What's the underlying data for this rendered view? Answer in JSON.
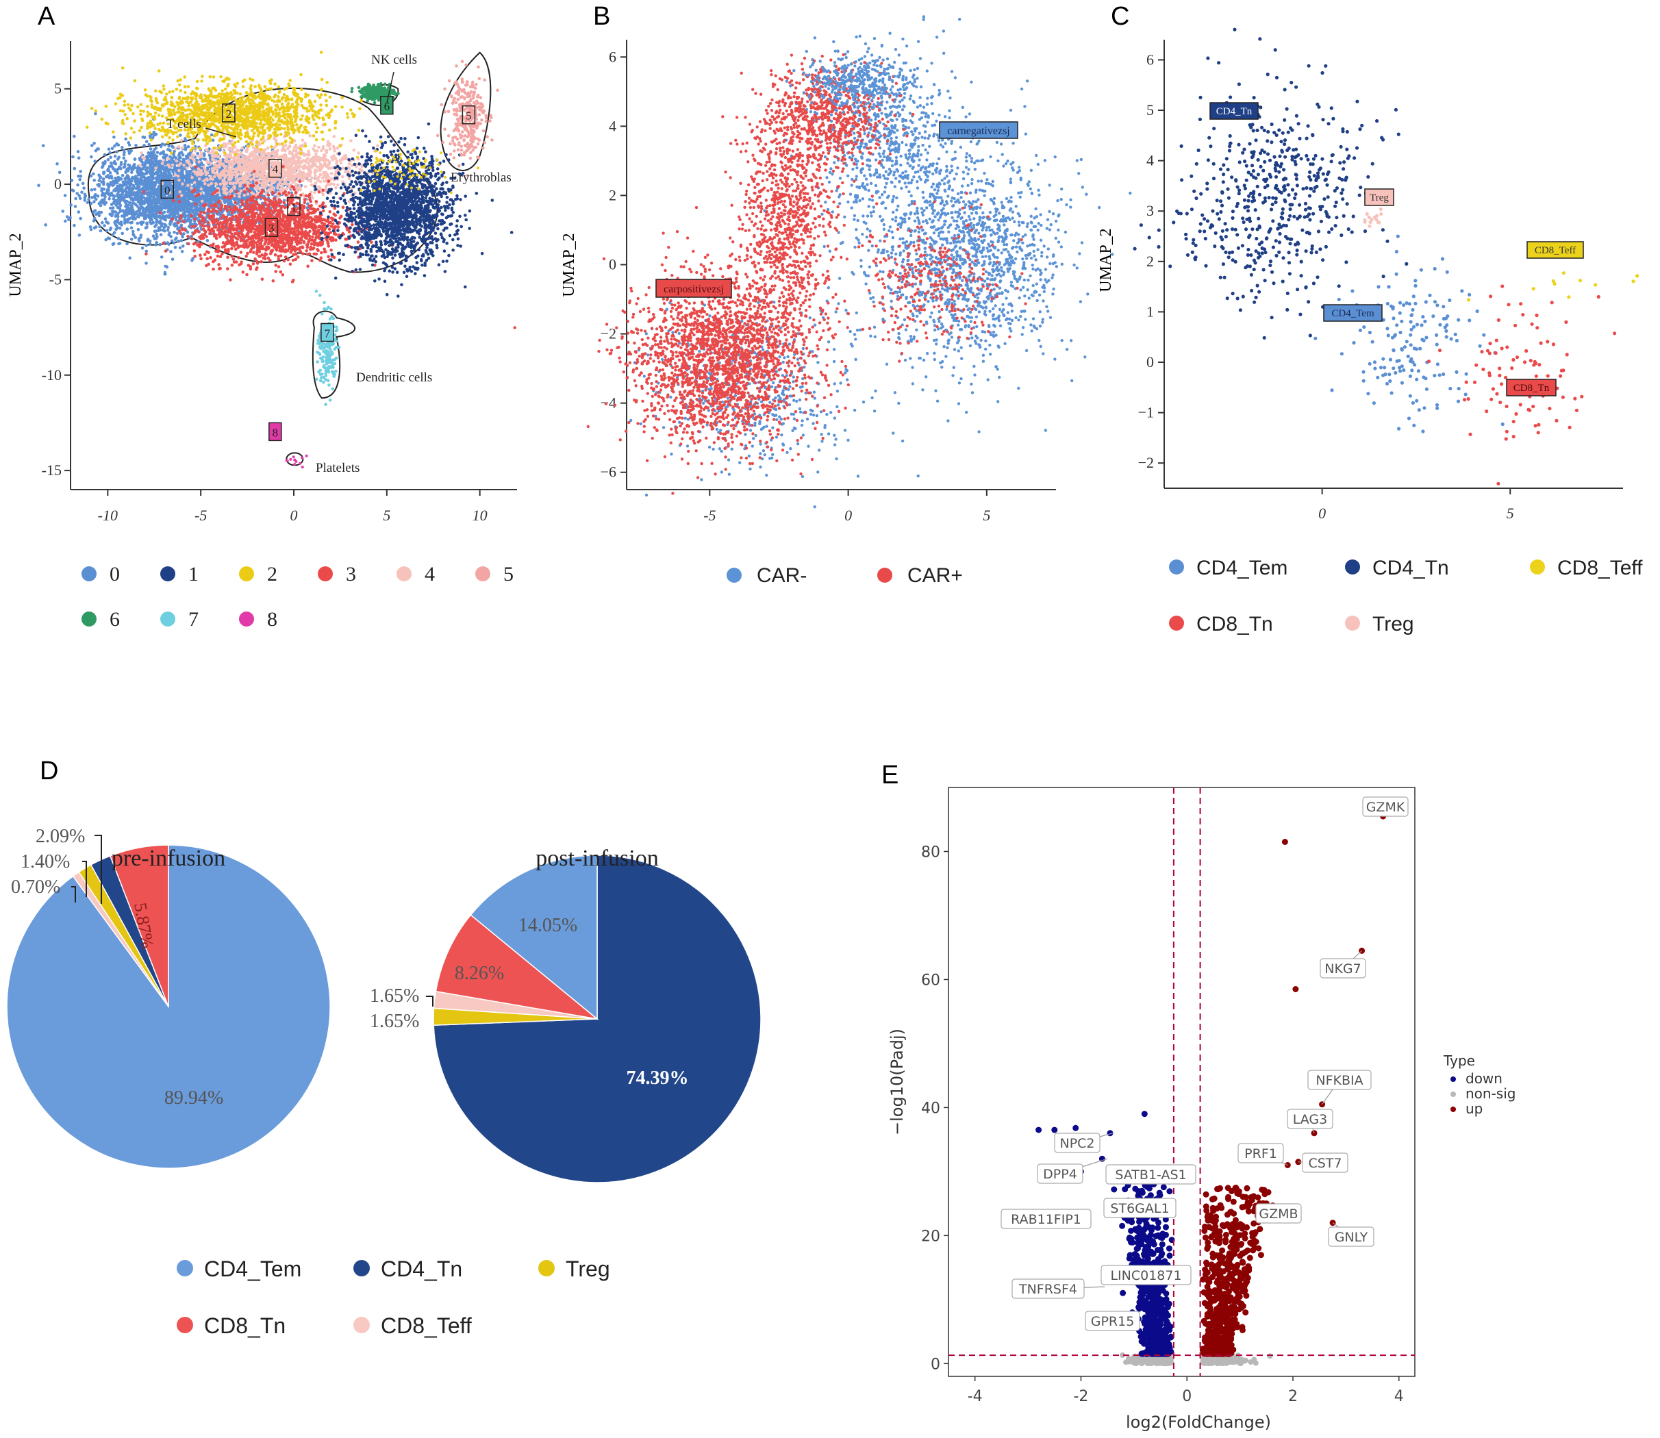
{
  "panels": {
    "a": "A",
    "b": "B",
    "c": "C",
    "d": "D",
    "e": "E"
  },
  "chart_data": [
    {
      "id": "A",
      "type": "scatter",
      "title": "",
      "xlabel": "",
      "ylabel": "UMAP_2",
      "xlim": [
        -12,
        12
      ],
      "ylim": [
        -16,
        7.5
      ],
      "xticks": [
        "-10",
        "-5",
        "0",
        "5",
        "10"
      ],
      "xtick_values": [
        -10,
        -5,
        0,
        5,
        10
      ],
      "yticks": [
        "5",
        "0",
        "-5",
        "-10",
        "-15"
      ],
      "ytick_values": [
        5,
        0,
        -5,
        -10,
        -15
      ],
      "clusters": [
        {
          "label": "0",
          "color": "#5b8fd4",
          "x": -6.8,
          "y": -0.3
        },
        {
          "label": "1",
          "color": "#1f3f86",
          "x": 0,
          "y": -1.2
        },
        {
          "label": "2",
          "color": "#eccb17",
          "x": -3.5,
          "y": 3.7
        },
        {
          "label": "3",
          "color": "#ea4a4a",
          "x": -1.2,
          "y": -2.3
        },
        {
          "label": "4",
          "color": "#f7c2bb",
          "x": -1,
          "y": 0.8
        },
        {
          "label": "5",
          "color": "#f2a5a3",
          "x": 9.4,
          "y": 3.6
        },
        {
          "label": "6",
          "color": "#2f9a63",
          "x": 5.0,
          "y": 4.1
        },
        {
          "label": "7",
          "color": "#6ecfe0",
          "x": 1.8,
          "y": -7.8
        },
        {
          "label": "8",
          "color": "#e23aa9",
          "x": -1,
          "y": -13
        }
      ],
      "annotations": [
        "NK cells",
        "T cells",
        "Erythroblas",
        "Dendritic cells",
        "Platelets"
      ],
      "legend": [
        "0",
        "1",
        "2",
        "3",
        "4",
        "5",
        "6",
        "7",
        "8"
      ]
    },
    {
      "id": "B",
      "type": "scatter",
      "title": "",
      "xlabel": "",
      "ylabel": "UMAP_2",
      "xlim": [
        -8,
        7.5
      ],
      "ylim": [
        -6.5,
        6.5
      ],
      "xticks": [
        "-5",
        "0",
        "5"
      ],
      "xtick_values": [
        -5,
        0,
        5
      ],
      "yticks": [
        "6",
        "4",
        "2",
        "0",
        "−2",
        "−4",
        "−6"
      ],
      "ytick_values": [
        6,
        4,
        2,
        0,
        -2,
        -4,
        -6
      ],
      "series": [
        {
          "name": "CAR-",
          "color": "#5b93d6"
        },
        {
          "name": "CAR+",
          "color": "#e84a4a"
        }
      ],
      "annotations": [
        "carnegativezsj",
        "carpositivezsj"
      ]
    },
    {
      "id": "C",
      "type": "scatter",
      "title": "",
      "xlabel": "",
      "ylabel": "UMAP_2",
      "xlim": [
        -4.2,
        8
      ],
      "ylim": [
        -2.5,
        6.4
      ],
      "xticks": [
        "0",
        "5"
      ],
      "xtick_values": [
        0,
        5
      ],
      "yticks": [
        "6",
        "5",
        "4",
        "3",
        "2",
        "1",
        "0",
        "−1",
        "−2"
      ],
      "ytick_values": [
        6,
        5,
        4,
        3,
        2,
        1,
        0,
        -1,
        -2
      ],
      "series": [
        {
          "name": "CD4_Tem",
          "color": "#5b8fd4"
        },
        {
          "name": "CD4_Tn",
          "color": "#1f3f86"
        },
        {
          "name": "CD8_Teff",
          "color": "#ecd21a"
        },
        {
          "name": "CD8_Tn",
          "color": "#ea4a4a"
        },
        {
          "name": "Treg",
          "color": "#f7c2bb"
        }
      ],
      "annotations": [
        "CD4_Tn",
        "Treg",
        "CD8_Teff",
        "CD4_Tem",
        "CD8_Tn"
      ]
    },
    {
      "id": "D1",
      "type": "pie",
      "title": "pre-infusion",
      "slices": [
        {
          "name": "CD4_Tem",
          "value": 89.94,
          "label": "89.94%",
          "color": "#6a9bda"
        },
        {
          "name": "CD4_Tn",
          "value": 2.09,
          "label": "2.09%",
          "color": "#22468a"
        },
        {
          "name": "Treg",
          "value": 1.4,
          "label": "1.40%",
          "color": "#e3c512"
        },
        {
          "name": "CD8_Teff",
          "value": 0.7,
          "label": "0.70%",
          "color": "#f8c8c2"
        },
        {
          "name": "CD8_Tn",
          "value": 5.87,
          "label": "5.87%",
          "color": "#ee5353"
        }
      ]
    },
    {
      "id": "D2",
      "type": "pie",
      "title": "post-infusion",
      "slices": [
        {
          "name": "CD4_Tn",
          "value": 74.39,
          "label": "74.39%",
          "color": "#22468a"
        },
        {
          "name": "Treg",
          "value": 1.65,
          "label": "1.65%",
          "color": "#e3c512"
        },
        {
          "name": "CD8_Teff",
          "value": 1.65,
          "label": "1.65%",
          "color": "#f8c8c2"
        },
        {
          "name": "CD8_Tn",
          "value": 8.26,
          "label": "8.26%",
          "color": "#ee5353"
        },
        {
          "name": "CD4_Tem",
          "value": 14.05,
          "label": "14.05%",
          "color": "#6a9bda"
        }
      ],
      "legend": [
        "CD4_Tem",
        "CD4_Tn",
        "Treg",
        "CD8_Tn",
        "CD8_Teff"
      ]
    },
    {
      "id": "E",
      "type": "scatter",
      "title": "",
      "xlabel": "log2(FoldChange)",
      "ylabel": "−log10(Padj)",
      "xlim": [
        -4.5,
        4.3
      ],
      "ylim": [
        -2,
        90
      ],
      "xticks": [
        "-4",
        "-2",
        "0",
        "2",
        "4"
      ],
      "xtick_values": [
        -4,
        -2,
        0,
        2,
        4
      ],
      "yticks": [
        "0",
        "20",
        "40",
        "60",
        "80"
      ],
      "ytick_values": [
        0,
        20,
        40,
        60,
        80
      ],
      "thresholds": {
        "x": [
          -0.25,
          0.25
        ],
        "y": 1.3
      },
      "legend": {
        "title": "Type",
        "items": [
          {
            "name": "down",
            "color": "#0a0a8a"
          },
          {
            "name": "non-sig",
            "color": "#b8b8b8"
          },
          {
            "name": "up",
            "color": "#8b0000"
          }
        ]
      },
      "labeled_genes": [
        {
          "gene": "GZMK",
          "x": 3.7,
          "y": 85.5
        },
        {
          "gene": "NKG7",
          "x": 3.3,
          "y": 64.5
        },
        {
          "gene": "NFKBIA",
          "x": 2.55,
          "y": 40.5
        },
        {
          "gene": "LAG3",
          "x": 2.4,
          "y": 36
        },
        {
          "gene": "PRF1",
          "x": 1.9,
          "y": 31
        },
        {
          "gene": "CST7",
          "x": 2.1,
          "y": 31.5
        },
        {
          "gene": "GZMB",
          "x": 1.5,
          "y": 25
        },
        {
          "gene": "GNLY",
          "x": 2.75,
          "y": 22
        },
        {
          "gene": "NPC2",
          "x": -1.4,
          "y": 36
        },
        {
          "gene": "DPP4",
          "x": -1.5,
          "y": 32
        },
        {
          "gene": "SATB1-AS1",
          "x": -1.45,
          "y": 29
        },
        {
          "gene": "ST6GAL1",
          "x": -1.35,
          "y": 23.5
        },
        {
          "gene": "RAB11FIP1",
          "x": -1.8,
          "y": 22
        },
        {
          "gene": "LINC01871",
          "x": -1.05,
          "y": 14
        },
        {
          "gene": "TNFRSF4",
          "x": -1.55,
          "y": 12
        },
        {
          "gene": "GPR15",
          "x": -0.9,
          "y": 7
        }
      ],
      "extra_points": [
        {
          "type": "up",
          "x": 1.85,
          "y": 81.5
        },
        {
          "type": "up",
          "x": 2.05,
          "y": 58.5
        },
        {
          "type": "down",
          "x": -0.8,
          "y": 39
        }
      ]
    }
  ]
}
